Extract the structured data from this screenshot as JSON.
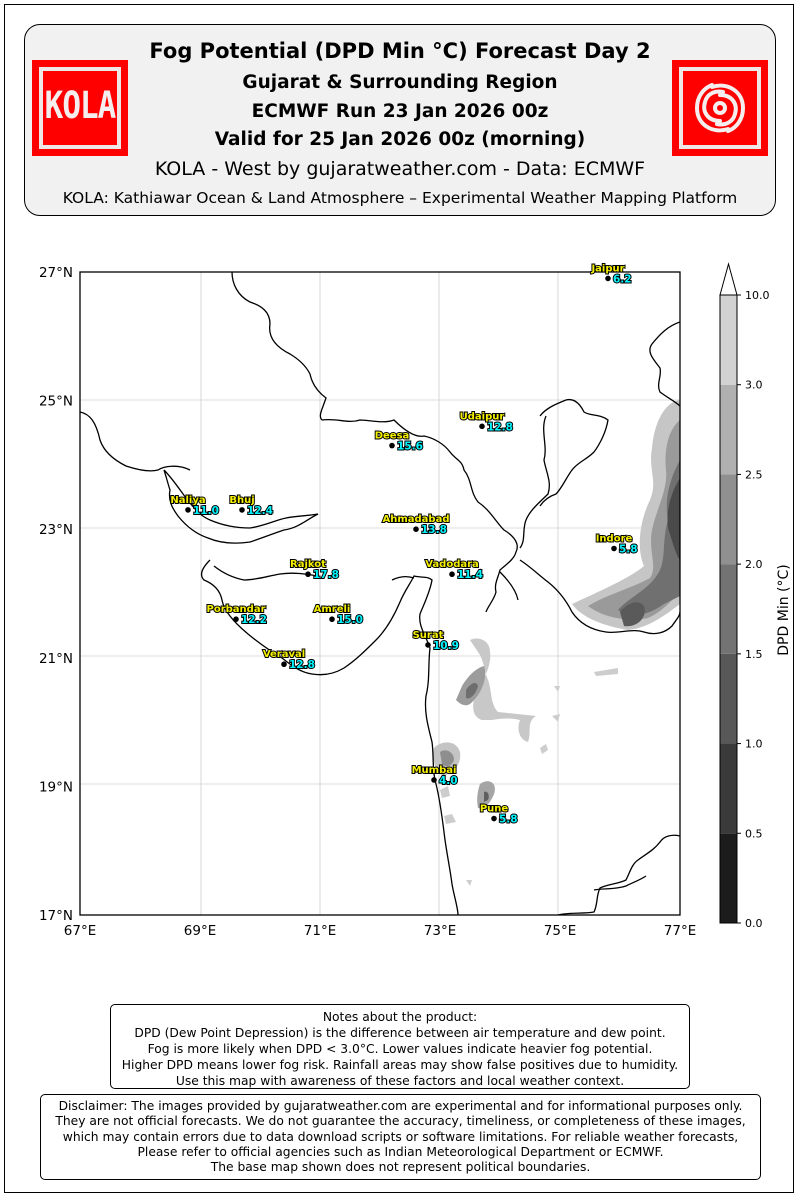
{
  "header": {
    "title": "Fog Potential (DPD Min °C) Forecast Day 2",
    "region": "Gujarat & Surrounding Region",
    "run": "ECMWF Run 23 Jan 2026 00z",
    "valid": "Valid for 25 Jan 2026 00z (morning)",
    "source": "KOLA - West by gujaratweather.com  -  Data: ECMWF",
    "platform": "KOLA: Kathiawar Ocean & Land Atmosphere – Experimental Weather Mapping Platform",
    "logo_left_text": "KOLA",
    "logo_right_icon": "cyclone-swirl-icon",
    "logo_color": "#ff0000"
  },
  "map": {
    "lon_range": [
      67,
      77
    ],
    "lat_range": [
      17,
      27
    ],
    "x_ticks": [
      "67°E",
      "69°E",
      "71°E",
      "73°E",
      "75°E",
      "77°E"
    ],
    "y_ticks": [
      "27°N",
      "25°N",
      "23°N",
      "21°N",
      "19°N",
      "17°N"
    ],
    "grid": true,
    "cities": [
      {
        "name": "Jaipur",
        "value": "6.2",
        "lon": 75.8,
        "lat": 26.9
      },
      {
        "name": "Udaipur",
        "value": "12.8",
        "lon": 73.7,
        "lat": 24.6
      },
      {
        "name": "Deesa",
        "value": "15.6",
        "lon": 72.2,
        "lat": 24.3
      },
      {
        "name": "Naliya",
        "value": "11.0",
        "lon": 68.8,
        "lat": 23.3
      },
      {
        "name": "Bhuj",
        "value": "12.4",
        "lon": 69.7,
        "lat": 23.3
      },
      {
        "name": "Ahmadabad",
        "value": "13.8",
        "lon": 72.6,
        "lat": 23.0
      },
      {
        "name": "Indore",
        "value": "5.8",
        "lon": 75.9,
        "lat": 22.7
      },
      {
        "name": "Rajkot",
        "value": "17.8",
        "lon": 70.8,
        "lat": 22.3
      },
      {
        "name": "Vadodara",
        "value": "11.4",
        "lon": 73.2,
        "lat": 22.3
      },
      {
        "name": "Porbandar",
        "value": "12.2",
        "lon": 69.6,
        "lat": 21.6
      },
      {
        "name": "Amreli",
        "value": "15.0",
        "lon": 71.2,
        "lat": 21.6
      },
      {
        "name": "Surat",
        "value": "10.9",
        "lon": 72.8,
        "lat": 21.2
      },
      {
        "name": "Veraval",
        "value": "12.8",
        "lon": 70.4,
        "lat": 20.9
      },
      {
        "name": "Mumbai",
        "value": "4.0",
        "lon": 72.9,
        "lat": 19.1
      },
      {
        "name": "Pune",
        "value": "5.8",
        "lon": 73.9,
        "lat": 18.5
      }
    ]
  },
  "colorbar": {
    "label": "DPD Min (°C)",
    "levels": [
      "0.0",
      "0.5",
      "1.0",
      "1.5",
      "2.0",
      "2.5",
      "3.0",
      "10.0"
    ],
    "colors": [
      "#1c1c1c",
      "#3a3a3a",
      "#585858",
      "#737373",
      "#909090",
      "#b0b0b0",
      "#d2d2d2",
      "#ffffff"
    ]
  },
  "notes": {
    "title": "Notes about the product:",
    "lines": [
      "DPD (Dew Point Depression) is the difference between air temperature and dew point.",
      "Fog is more likely when DPD < 3.0°C. Lower values indicate heavier fog potential.",
      "Higher DPD means lower fog risk. Rainfall areas may show false positives due to humidity.",
      "Use this map with awareness of these factors and local weather context."
    ]
  },
  "disclaimer": {
    "lines": [
      "Disclaimer: The images provided by gujaratweather.com are experimental and for informational purposes only.",
      "They are not official forecasts. We do not guarantee the accuracy, timeliness, or completeness of these images,",
      "which may contain errors due to data download scripts or software limitations. For reliable weather forecasts,",
      "Please refer to official agencies such as Indian Meteorological Department or ECMWF.",
      "The base map shown does not represent political boundaries."
    ]
  }
}
